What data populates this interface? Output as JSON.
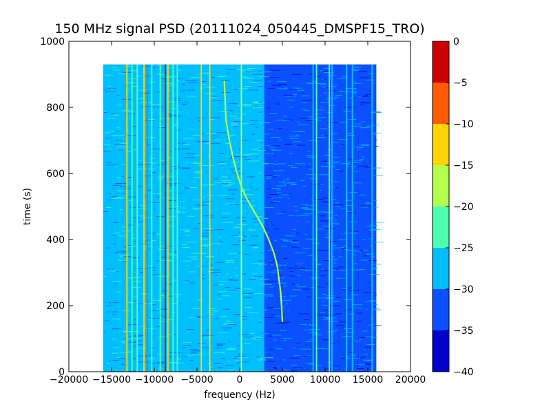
{
  "chart_data": {
    "type": "heatmap",
    "title": "150 MHz signal PSD (20111024_050445_DMSPF15_TRO)",
    "xlabel": "frequency (Hz)",
    "ylabel": "time (s)",
    "xlim": [
      -20000,
      20000
    ],
    "ylim": [
      0,
      1000
    ],
    "xticks": [
      -20000,
      -15000,
      -10000,
      -5000,
      0,
      5000,
      10000,
      15000,
      20000
    ],
    "yticks": [
      0,
      200,
      400,
      600,
      800,
      1000
    ],
    "data_extent": {
      "x": [
        -16000,
        16000
      ],
      "y": [
        0,
        930
      ]
    },
    "colorbar": {
      "ticks": [
        0,
        -5,
        -10,
        -15,
        -20,
        -25,
        -30,
        -35,
        -40
      ],
      "levels": [
        {
          "range": [
            -40,
            -35
          ],
          "color": "#0000cd"
        },
        {
          "range": [
            -35,
            -30
          ],
          "color": "#0a50ff"
        },
        {
          "range": [
            -30,
            -25
          ],
          "color": "#00bfff"
        },
        {
          "range": [
            -25,
            -20
          ],
          "color": "#4dffb0"
        },
        {
          "range": [
            -20,
            -15
          ],
          "color": "#b2ff4d"
        },
        {
          "range": [
            -15,
            -10
          ],
          "color": "#ffd400"
        },
        {
          "range": [
            -10,
            -5
          ],
          "color": "#ff5a00"
        },
        {
          "range": [
            -5,
            0
          ],
          "color": "#cd0000"
        }
      ]
    },
    "background_regions": [
      {
        "x": [
          -16000,
          2800
        ],
        "level_db": -27
      },
      {
        "x": [
          2800,
          16000
        ],
        "level_db": -32
      }
    ],
    "vertical_lines": [
      {
        "x": -15000,
        "level_db": -25
      },
      {
        "x": -13200,
        "level_db": -12
      },
      {
        "x": -12600,
        "level_db": -22
      },
      {
        "x": -12000,
        "level_db": -20
      },
      {
        "x": -11200,
        "level_db": -12
      },
      {
        "x": -10800,
        "level_db": -8
      },
      {
        "x": -10300,
        "level_db": -22
      },
      {
        "x": -9800,
        "level_db": -25
      },
      {
        "x": -9300,
        "level_db": -22
      },
      {
        "x": -8700,
        "level_db": -2
      },
      {
        "x": -8400,
        "level_db": -12
      },
      {
        "x": -7800,
        "level_db": -20
      },
      {
        "x": -7300,
        "level_db": -22
      },
      {
        "x": -6800,
        "level_db": -25
      },
      {
        "x": -4500,
        "level_db": -12
      },
      {
        "x": -3500,
        "level_db": -14
      },
      {
        "x": 200,
        "level_db": -18
      },
      {
        "x": 2800,
        "level_db": -25
      },
      {
        "x": 8600,
        "level_db": -25
      },
      {
        "x": 9000,
        "level_db": -22
      },
      {
        "x": 10500,
        "level_db": -22
      },
      {
        "x": 10800,
        "level_db": -25
      },
      {
        "x": 12500,
        "level_db": -25
      },
      {
        "x": 13200,
        "level_db": -25
      },
      {
        "x": 15500,
        "level_db": -26
      }
    ],
    "doppler_trace": {
      "level_db": -17,
      "points": [
        {
          "t": 880,
          "f": -1800
        },
        {
          "t": 820,
          "f": -1700
        },
        {
          "t": 760,
          "f": -1600
        },
        {
          "t": 700,
          "f": -1200
        },
        {
          "t": 650,
          "f": -800
        },
        {
          "t": 600,
          "f": -300
        },
        {
          "t": 560,
          "f": 200
        },
        {
          "t": 520,
          "f": 900
        },
        {
          "t": 480,
          "f": 1800
        },
        {
          "t": 440,
          "f": 2700
        },
        {
          "t": 400,
          "f": 3400
        },
        {
          "t": 360,
          "f": 4000
        },
        {
          "t": 320,
          "f": 4400
        },
        {
          "t": 280,
          "f": 4600
        },
        {
          "t": 240,
          "f": 4800
        },
        {
          "t": 200,
          "f": 4900
        },
        {
          "t": 150,
          "f": 5000
        }
      ]
    },
    "grid": false
  }
}
